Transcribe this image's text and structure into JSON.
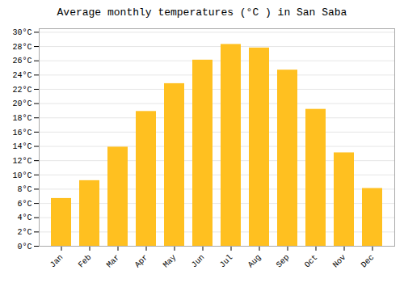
{
  "chart_data": {
    "type": "bar",
    "title": "Average monthly temperatures (°C ) in San Saba",
    "categories": [
      "Jan",
      "Feb",
      "Mar",
      "Apr",
      "May",
      "Jun",
      "Jul",
      "Aug",
      "Sep",
      "Oct",
      "Nov",
      "Dec"
    ],
    "values": [
      6.7,
      9.2,
      13.9,
      18.9,
      22.8,
      26.1,
      28.3,
      27.8,
      24.7,
      19.2,
      13.1,
      8.1
    ],
    "color": "#FFC020",
    "ylim": [
      0,
      30.5
    ],
    "yticks": [
      {
        "value": 0,
        "label": "0°C"
      },
      {
        "value": 2,
        "label": "2°C"
      },
      {
        "value": 4,
        "label": "4°C"
      },
      {
        "value": 6,
        "label": "6°C"
      },
      {
        "value": 8,
        "label": "8°C"
      },
      {
        "value": 10,
        "label": "10°C"
      },
      {
        "value": 12,
        "label": "12°C"
      },
      {
        "value": 14,
        "label": "14°C"
      },
      {
        "value": 16,
        "label": "16°C"
      },
      {
        "value": 18,
        "label": "18°C"
      },
      {
        "value": 20,
        "label": "20°C"
      },
      {
        "value": 22,
        "label": "22°C"
      },
      {
        "value": 24,
        "label": "24°C"
      },
      {
        "value": 26,
        "label": "26°C"
      },
      {
        "value": 28,
        "label": "28°C"
      },
      {
        "value": 30,
        "label": "30°C"
      }
    ],
    "grid": true
  }
}
